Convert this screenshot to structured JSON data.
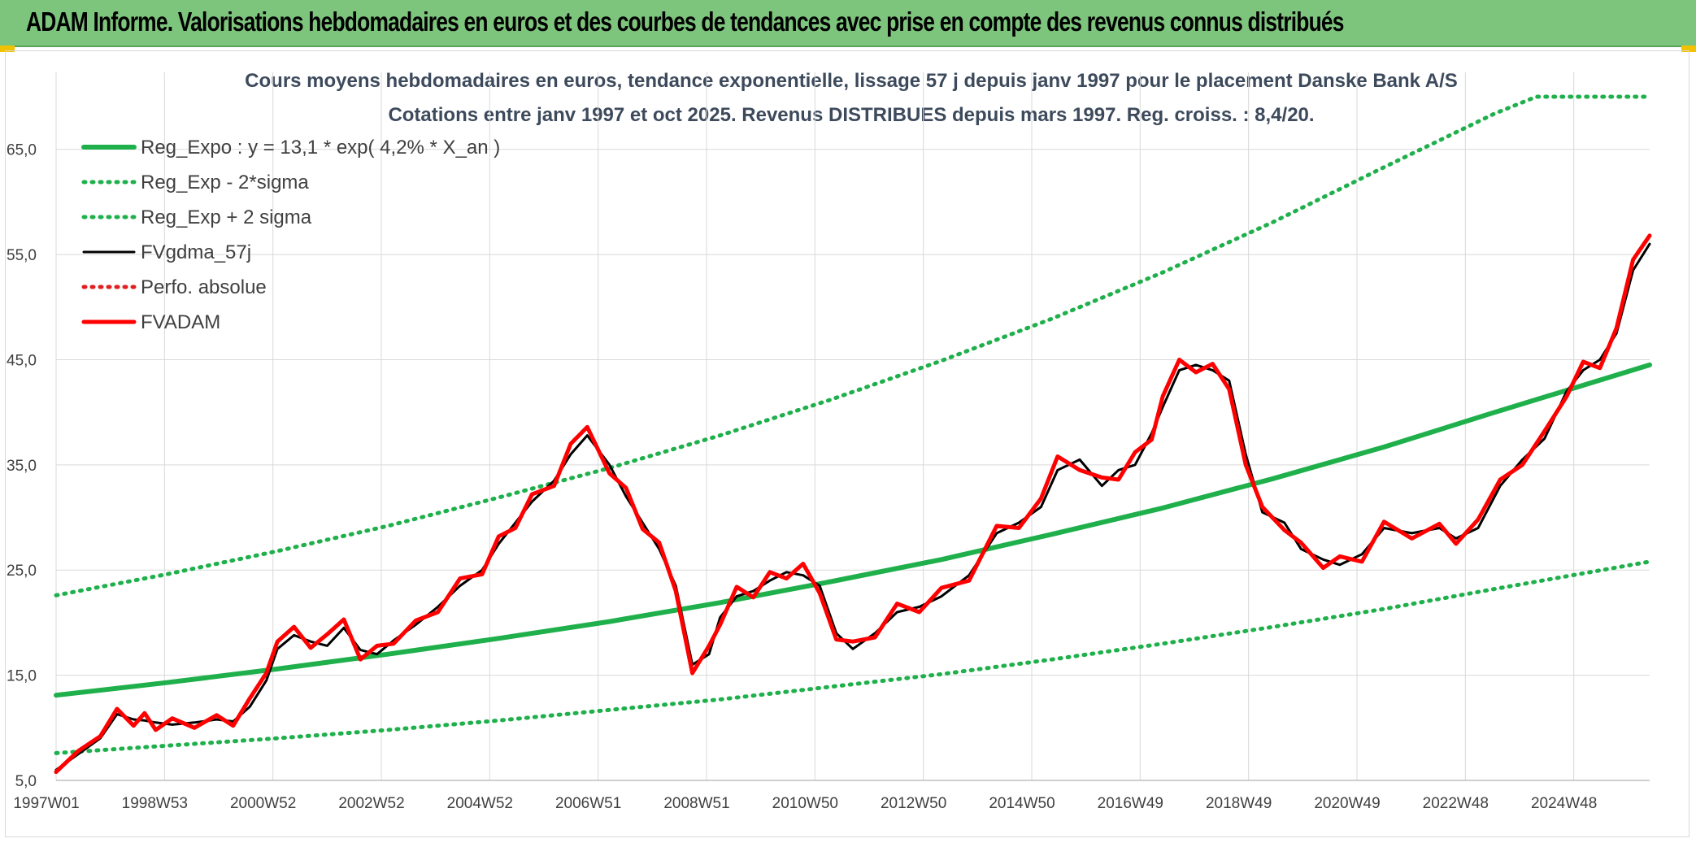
{
  "header": {
    "title": "ADAM Informe. Valorisations hebdomadaires en euros et des courbes de tendances avec prise en compte des revenus connus distribués"
  },
  "chart_data": {
    "type": "line",
    "title": "Cours moyens hebdomadaires en euros, tendance exponentielle, lissage 57 j depuis janv 1997 pour le placement Danske Bank A/S",
    "subtitle": "Cotations entre janv 1997 et oct 2025. Revenus DISTRIBUES depuis mars 1997. Reg. croiss. : 8,4/20.",
    "xlabel": "",
    "ylabel": "",
    "xlim": [
      1997.0,
      2025.8
    ],
    "ylim": [
      5,
      70
    ],
    "y_ticks": [
      "65,0",
      "55,0",
      "45,0",
      "35,0",
      "25,0",
      "15,0",
      "5,0"
    ],
    "x_ticks": [
      "1997W01",
      "1998W53",
      "2000W52",
      "2002W52",
      "2004W52",
      "2006W51",
      "2008W51",
      "2010W50",
      "2012W50",
      "2014W50",
      "2016W49",
      "2018W49",
      "2020W49",
      "2022W48",
      "2024W48"
    ],
    "legend_position": "top-left",
    "colors": {
      "reg_expo": "#1fb04c",
      "sigma": "#1fb04c",
      "fvgdma": "#000000",
      "perfo": "#e02020",
      "fvadam": "#ff0000",
      "grid": "#d9d9d9"
    },
    "series": [
      {
        "name": "Reg_Expo : y = 13,1 * exp( 4,2% *  X_an )",
        "style": "solid-thick",
        "color": "#1fb04c",
        "x": [
          1997,
          1999,
          2001,
          2003,
          2005,
          2007,
          2009,
          2011,
          2013,
          2015,
          2017,
          2019,
          2021,
          2023,
          2025.8
        ],
        "values": [
          13.1,
          14.3,
          15.6,
          17.0,
          18.5,
          20.1,
          21.9,
          23.9,
          26.0,
          28.4,
          30.9,
          33.7,
          36.7,
          40.0,
          44.5
        ]
      },
      {
        "name": "Reg_Exp - 2*sigma",
        "style": "dotted",
        "color": "#1fb04c",
        "x": [
          1997,
          1999,
          2001,
          2003,
          2005,
          2007,
          2009,
          2011,
          2013,
          2015,
          2017,
          2019,
          2021,
          2023,
          2025.8
        ],
        "values": [
          7.6,
          8.3,
          9.0,
          9.8,
          10.7,
          11.7,
          12.7,
          13.9,
          15.1,
          16.5,
          18.0,
          19.6,
          21.3,
          23.2,
          25.8
        ]
      },
      {
        "name": "Reg_Exp + 2 sigma",
        "style": "dotted",
        "color": "#1fb04c",
        "x": [
          1997,
          1999,
          2001,
          2003,
          2005,
          2007,
          2009,
          2011,
          2013,
          2015,
          2017,
          2019,
          2021,
          2023,
          2023.75,
          2025.8
        ],
        "values": [
          22.6,
          24.6,
          26.8,
          29.2,
          31.9,
          34.7,
          37.8,
          41.2,
          44.9,
          48.9,
          53.3,
          58.1,
          63.3,
          68.4,
          70,
          70
        ]
      },
      {
        "name": "FVgdma_57j",
        "style": "solid",
        "color": "#000000",
        "x": [
          1997.0,
          1997.4,
          1997.8,
          1998.1,
          1998.4,
          1998.6,
          1998.8,
          1999.1,
          1999.5,
          1999.9,
          2000.2,
          2000.5,
          2000.8,
          2001.0,
          2001.3,
          2001.6,
          2001.9,
          2002.2,
          2002.5,
          2002.8,
          2003.1,
          2003.5,
          2003.9,
          2004.3,
          2004.7,
          2005.0,
          2005.3,
          2005.6,
          2006.0,
          2006.3,
          2006.6,
          2007.0,
          2007.3,
          2007.6,
          2007.9,
          2008.2,
          2008.5,
          2008.8,
          2009.0,
          2009.3,
          2009.6,
          2009.9,
          2010.2,
          2010.5,
          2010.8,
          2011.1,
          2011.4,
          2011.8,
          2012.2,
          2012.6,
          2013.0,
          2013.5,
          2014.0,
          2014.4,
          2014.8,
          2015.1,
          2015.5,
          2015.9,
          2016.2,
          2016.5,
          2016.8,
          2017.0,
          2017.3,
          2017.6,
          2017.9,
          2018.2,
          2018.5,
          2018.8,
          2019.2,
          2019.5,
          2019.9,
          2020.2,
          2020.6,
          2021.0,
          2021.5,
          2022.0,
          2022.3,
          2022.7,
          2023.1,
          2023.5,
          2023.9,
          2024.3,
          2024.6,
          2024.9,
          2025.2,
          2025.5,
          2025.8
        ],
        "values": [
          6.0,
          7.5,
          9.0,
          11.3,
          10.8,
          10.7,
          10.5,
          10.3,
          10.5,
          10.8,
          10.6,
          12.0,
          14.5,
          17.5,
          18.8,
          18.2,
          17.8,
          19.5,
          17.4,
          17.0,
          18.3,
          19.8,
          21.5,
          23.5,
          25.0,
          27.5,
          29.5,
          31.5,
          33.5,
          36.0,
          37.8,
          35.0,
          32.0,
          29.5,
          27.0,
          23.5,
          16.0,
          17.0,
          20.5,
          22.5,
          23.0,
          24.0,
          24.8,
          24.5,
          23.5,
          19.0,
          17.5,
          19.0,
          21.0,
          21.5,
          22.5,
          24.5,
          28.5,
          29.5,
          31.0,
          34.5,
          35.5,
          33.0,
          34.5,
          35.0,
          38.0,
          40.5,
          44.0,
          44.5,
          44.0,
          43.0,
          36.0,
          30.5,
          29.5,
          27.0,
          26.0,
          25.5,
          26.5,
          29.0,
          28.5,
          29.0,
          28.0,
          29.0,
          33.0,
          35.5,
          37.5,
          42.0,
          44.0,
          45.0,
          47.5,
          53.5,
          56.0
        ]
      },
      {
        "name": "Perfo. absolue",
        "style": "dotted",
        "color": "#e02020",
        "x": [],
        "values": []
      },
      {
        "name": "FVADAM",
        "style": "solid-thick",
        "color": "#ff0000",
        "x": [
          1997.0,
          1997.4,
          1997.8,
          1998.1,
          1998.4,
          1998.6,
          1998.8,
          1999.1,
          1999.5,
          1999.9,
          2000.2,
          2000.5,
          2000.8,
          2001.0,
          2001.3,
          2001.6,
          2001.9,
          2002.2,
          2002.5,
          2002.8,
          2003.1,
          2003.5,
          2003.9,
          2004.3,
          2004.7,
          2005.0,
          2005.3,
          2005.6,
          2006.0,
          2006.3,
          2006.6,
          2007.0,
          2007.3,
          2007.6,
          2007.9,
          2008.2,
          2008.5,
          2008.8,
          2009.0,
          2009.3,
          2009.6,
          2009.9,
          2010.2,
          2010.5,
          2010.8,
          2011.1,
          2011.4,
          2011.8,
          2012.2,
          2012.6,
          2013.0,
          2013.5,
          2014.0,
          2014.4,
          2014.8,
          2015.1,
          2015.5,
          2015.9,
          2016.2,
          2016.5,
          2016.8,
          2017.0,
          2017.3,
          2017.6,
          2017.9,
          2018.2,
          2018.5,
          2018.8,
          2019.2,
          2019.5,
          2019.9,
          2020.2,
          2020.6,
          2021.0,
          2021.5,
          2022.0,
          2022.3,
          2022.7,
          2023.1,
          2023.5,
          2023.9,
          2024.3,
          2024.6,
          2024.9,
          2025.2,
          2025.5,
          2025.8
        ],
        "values": [
          5.8,
          7.8,
          9.2,
          11.8,
          10.2,
          11.4,
          9.8,
          10.9,
          10.0,
          11.2,
          10.2,
          12.8,
          15.2,
          18.2,
          19.6,
          17.6,
          18.9,
          20.3,
          16.5,
          17.8,
          18.0,
          20.2,
          21.0,
          24.2,
          24.6,
          28.2,
          29.0,
          32.2,
          33.0,
          37.0,
          38.6,
          34.2,
          32.8,
          28.9,
          27.6,
          23.0,
          15.2,
          17.8,
          19.8,
          23.4,
          22.4,
          24.8,
          24.2,
          25.6,
          22.8,
          18.4,
          18.2,
          18.6,
          21.8,
          21.0,
          23.3,
          24.0,
          29.2,
          29.0,
          31.8,
          35.8,
          34.5,
          33.8,
          33.6,
          36.2,
          37.4,
          41.5,
          45.0,
          43.8,
          44.6,
          42.2,
          35.0,
          31.0,
          28.8,
          27.6,
          25.2,
          26.3,
          25.8,
          29.6,
          28.0,
          29.4,
          27.5,
          29.8,
          33.6,
          35.0,
          38.2,
          41.5,
          44.8,
          44.2,
          48.0,
          54.5,
          56.8
        ]
      }
    ]
  }
}
